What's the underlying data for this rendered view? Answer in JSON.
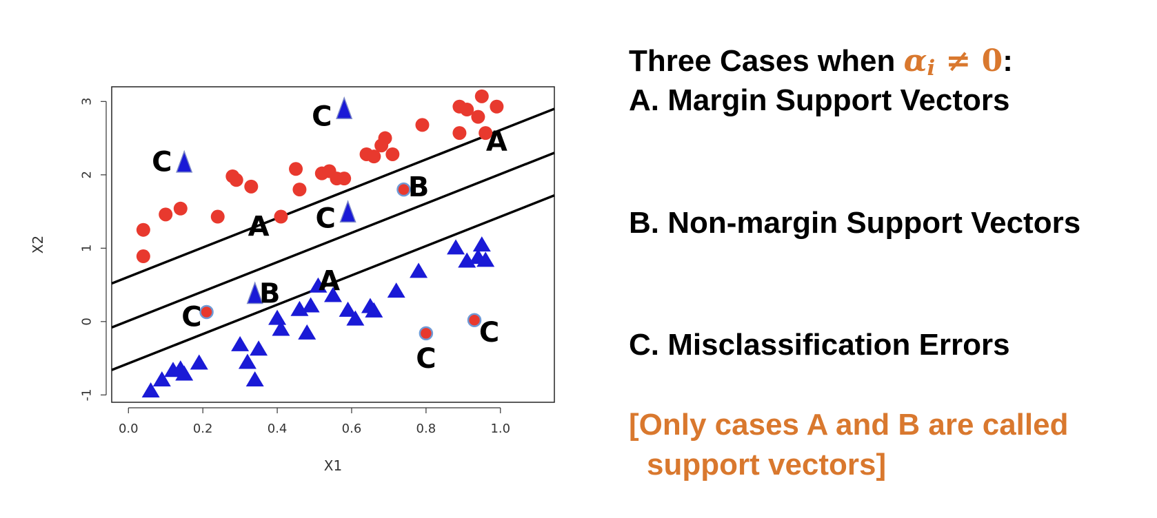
{
  "chart_data": {
    "type": "scatter",
    "title": "",
    "xlabel": "X1",
    "ylabel": "X2",
    "xlim": [
      -0.045,
      1.145
    ],
    "ylim": [
      -1.1,
      3.2
    ],
    "xticks": [
      "0.0",
      "0.2",
      "0.4",
      "0.6",
      "0.8",
      "1.0"
    ],
    "yticks": [
      "-1",
      "0",
      "1",
      "2",
      "3"
    ],
    "grid": false,
    "colors": {
      "circle": "#e8392e",
      "triangle": "#1a1ad6",
      "label": "#000000",
      "note": "#d9782e"
    },
    "lines": [
      {
        "x": [
          -0.045,
          1.145
        ],
        "y": [
          0.52,
          2.9
        ]
      },
      {
        "x": [
          -0.045,
          1.145
        ],
        "y": [
          -0.08,
          2.3
        ]
      },
      {
        "x": [
          -0.045,
          1.145
        ],
        "y": [
          -0.66,
          1.72
        ]
      }
    ],
    "series": [
      {
        "marker": "circle",
        "points": [
          [
            0.04,
            1.25
          ],
          [
            0.04,
            0.89
          ],
          [
            0.1,
            1.46
          ],
          [
            0.14,
            1.54
          ],
          [
            0.24,
            1.43
          ],
          [
            0.28,
            1.98
          ],
          [
            0.29,
            1.93
          ],
          [
            0.33,
            1.84
          ],
          [
            0.41,
            1.43
          ],
          [
            0.45,
            2.08
          ],
          [
            0.46,
            1.8
          ],
          [
            0.52,
            2.02
          ],
          [
            0.54,
            2.05
          ],
          [
            0.56,
            1.95
          ],
          [
            0.58,
            1.95
          ],
          [
            0.64,
            2.28
          ],
          [
            0.66,
            2.25
          ],
          [
            0.68,
            2.4
          ],
          [
            0.69,
            2.5
          ],
          [
            0.71,
            2.28
          ],
          [
            0.79,
            2.68
          ],
          [
            0.89,
            2.93
          ],
          [
            0.89,
            2.57
          ],
          [
            0.91,
            2.89
          ],
          [
            0.94,
            2.79
          ],
          [
            0.95,
            3.07
          ],
          [
            0.96,
            2.57
          ],
          [
            0.99,
            2.93
          ]
        ]
      },
      {
        "marker": "triangle",
        "points": [
          [
            0.06,
            -0.95
          ],
          [
            0.09,
            -0.8
          ],
          [
            0.12,
            -0.67
          ],
          [
            0.14,
            -0.65
          ],
          [
            0.15,
            -0.72
          ],
          [
            0.19,
            -0.57
          ],
          [
            0.3,
            -0.32
          ],
          [
            0.32,
            -0.56
          ],
          [
            0.34,
            -0.8
          ],
          [
            0.35,
            -0.38
          ],
          [
            0.4,
            0.04
          ],
          [
            0.41,
            -0.11
          ],
          [
            0.46,
            0.16
          ],
          [
            0.48,
            -0.16
          ],
          [
            0.49,
            0.21
          ],
          [
            0.51,
            0.48
          ],
          [
            0.55,
            0.35
          ],
          [
            0.59,
            0.15
          ],
          [
            0.61,
            0.03
          ],
          [
            0.65,
            0.2
          ],
          [
            0.66,
            0.14
          ],
          [
            0.72,
            0.41
          ],
          [
            0.78,
            0.68
          ],
          [
            0.88,
            1.0
          ],
          [
            0.91,
            0.82
          ],
          [
            0.94,
            0.87
          ],
          [
            0.95,
            1.04
          ],
          [
            0.96,
            0.83
          ]
        ]
      },
      {
        "marker": "circle-error",
        "points": [
          [
            0.21,
            0.13
          ],
          [
            0.74,
            1.8
          ],
          [
            0.8,
            -0.16
          ],
          [
            0.93,
            0.02
          ]
        ]
      },
      {
        "marker": "triangle-error",
        "points": [
          [
            0.15,
            2.15
          ],
          [
            0.34,
            0.36
          ],
          [
            0.58,
            2.88
          ],
          [
            0.59,
            1.47
          ]
        ]
      }
    ],
    "annotations": [
      {
        "text": "C",
        "x": 0.09,
        "y": 2.17
      },
      {
        "text": "C",
        "x": 0.52,
        "y": 2.79
      },
      {
        "text": "C",
        "x": 0.53,
        "y": 1.4
      },
      {
        "text": "C",
        "x": 0.17,
        "y": 0.06
      },
      {
        "text": "C",
        "x": 0.8,
        "y": -0.51
      },
      {
        "text": "C",
        "x": 0.97,
        "y": -0.15
      },
      {
        "text": "A",
        "x": 0.35,
        "y": 1.29
      },
      {
        "text": "A",
        "x": 0.99,
        "y": 2.45
      },
      {
        "text": "A",
        "x": 0.54,
        "y": 0.55
      },
      {
        "text": "B",
        "x": 0.78,
        "y": 1.83
      },
      {
        "text": "B",
        "x": 0.38,
        "y": 0.38
      }
    ]
  },
  "panel": {
    "heading_prefix": "Three Cases when ",
    "alpha_symbol": "α",
    "alpha_subscript": "i",
    "alpha_rest": " ≠ 0",
    "heading_suffix": ":",
    "case_a": "A. Margin Support Vectors",
    "case_b": "B. Non-margin Support Vectors",
    "case_c": "C.  Misclassification Errors",
    "note_line1": "[Only cases A and B are called",
    "note_line2": "support vectors]"
  }
}
